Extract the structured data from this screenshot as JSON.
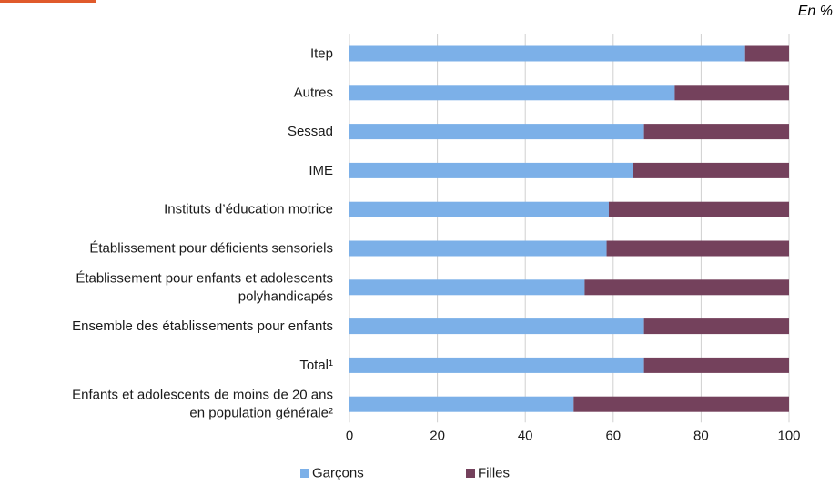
{
  "unit_label": "En %",
  "accent_color": "#e05a2b",
  "chart_data": {
    "type": "bar",
    "orientation": "horizontal",
    "stacked": true,
    "categories": [
      [
        "Itep"
      ],
      [
        "Autres"
      ],
      [
        "Sessad"
      ],
      [
        "IME"
      ],
      [
        "Instituts d’éducation motrice"
      ],
      [
        "Établissement pour déficients sensoriels"
      ],
      [
        "Établissement pour enfants et adolescents",
        "polyhandicapés"
      ],
      [
        "Ensemble des établissements pour enfants"
      ],
      [
        "Total¹"
      ],
      [
        "Enfants et adolescents de moins de 20 ans",
        "en population générale²"
      ]
    ],
    "series": [
      {
        "name": "Garçons",
        "color": "#7cb0e8",
        "values": [
          90,
          74,
          67,
          64.5,
          59,
          58.5,
          53.5,
          67,
          67,
          51
        ]
      },
      {
        "name": "Filles",
        "color": "#74415c",
        "values": [
          10,
          26,
          33,
          35.5,
          41,
          41.5,
          46.5,
          33,
          33,
          49
        ]
      }
    ],
    "xlim": [
      0,
      100
    ],
    "xticks": [
      0,
      20,
      40,
      60,
      80,
      100
    ],
    "grid": true,
    "legend_position": "bottom"
  }
}
